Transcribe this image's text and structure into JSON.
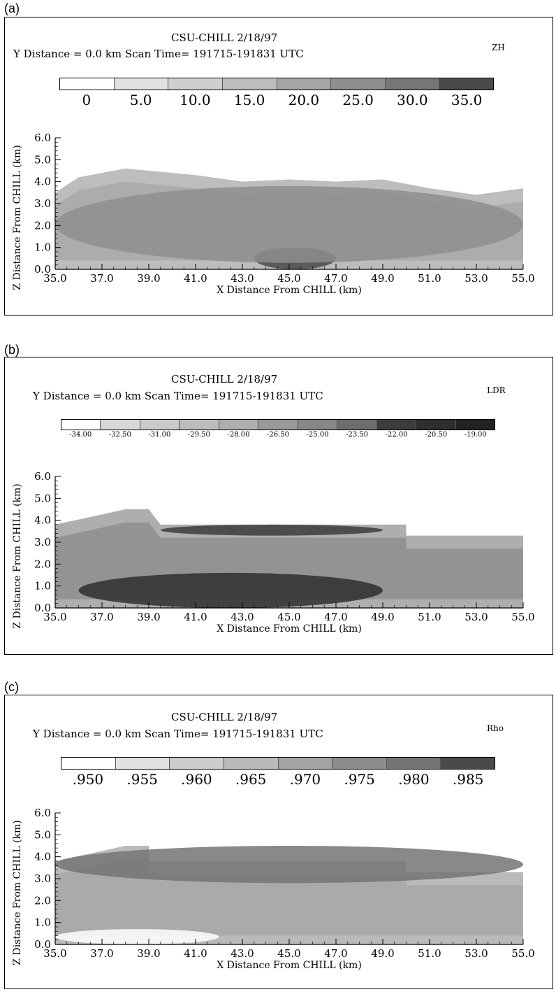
{
  "panels": [
    {
      "label": "(a)",
      "title_line1": "CSU-CHILL    2/18/97",
      "title_line2": "Y Distance =    0.0 km   Scan Time= 191715-191831 UTC",
      "variable": "ZH",
      "colorbar": {
        "labels": [
          "0",
          "5.0",
          "10.0",
          "15.0",
          "20.0",
          "25.0",
          "30.0",
          "35.0"
        ],
        "colors": [
          "#ffffff",
          "#e2e2e2",
          "#cfcfcf",
          "#bdbdbd",
          "#a5a5a5",
          "#8e8e8e",
          "#767676",
          "#4a4a4a"
        ]
      }
    },
    {
      "label": "(b)",
      "title_line1": "CSU-CHILL    2/18/97",
      "title_line2": "Y Distance =    0.0 km   Scan Time= 191715-191831 UTC",
      "variable": "LDR",
      "colorbar": {
        "labels": [
          "-34.00",
          "-32.50",
          "-31.00",
          "-29.50",
          "-28.00",
          "-26.50",
          "-25.00",
          "-23.50",
          "-22.00",
          "-20.50",
          "-19.00"
        ],
        "colors": [
          "#ffffff",
          "#d8d8d8",
          "#cacaca",
          "#bcbcbc",
          "#aeaeae",
          "#9a9a9a",
          "#878787",
          "#6d6d6d",
          "#3c3c3c",
          "#2e2e2e",
          "#222222"
        ]
      }
    },
    {
      "label": "(c)",
      "title_line1": "CSU-CHILL    2/18/97",
      "title_line2": "Y Distance =    0.0 km   Scan Time= 191715-191831 UTC",
      "variable": "Rho",
      "colorbar": {
        "labels": [
          ".950",
          ".955",
          ".960",
          ".965",
          ".970",
          ".975",
          ".980",
          ".985"
        ],
        "colors": [
          "#ffffff",
          "#e2e2e2",
          "#cdcdcd",
          "#bababa",
          "#a4a4a4",
          "#8d8d8d",
          "#747474",
          "#4a4a4a"
        ]
      }
    }
  ],
  "chart_data": [
    {
      "type": "heatmap",
      "title": "CSU-CHILL 2/18/97",
      "variable": "ZH",
      "xlabel": "X Distance From CHILL (km)",
      "ylabel": "Z Distance From CHILL (km)",
      "xlim": [
        35.0,
        55.0
      ],
      "ylim": [
        0.0,
        6.0
      ],
      "x_ticks": [
        "35.0",
        "37.0",
        "39.0",
        "41.0",
        "43.0",
        "45.0",
        "47.0",
        "49.0",
        "51.0",
        "53.0",
        "55.0"
      ],
      "y_ticks": [
        "0.0",
        "1.0",
        "2.0",
        "3.0",
        "4.0",
        "5.0",
        "6.0"
      ],
      "echo_top_km": [
        [
          35.0,
          3.5
        ],
        [
          36.0,
          4.2
        ],
        [
          37.0,
          4.4
        ],
        [
          38.0,
          4.6
        ],
        [
          39.0,
          4.5
        ],
        [
          41.0,
          4.3
        ],
        [
          43.0,
          4.0
        ],
        [
          45.0,
          4.1
        ],
        [
          47.0,
          4.0
        ],
        [
          49.0,
          4.1
        ],
        [
          51.0,
          3.7
        ],
        [
          53.0,
          3.4
        ],
        [
          55.0,
          3.7
        ]
      ],
      "features": [
        {
          "name": "bright band core",
          "x": [
            43.5,
            47.0
          ],
          "z": [
            0.0,
            1.0
          ],
          "value": 35.0
        },
        {
          "name": "main echo",
          "x": [
            35.0,
            55.0
          ],
          "z": [
            0.3,
            3.8
          ],
          "value": 25.0
        }
      ]
    },
    {
      "type": "heatmap",
      "title": "CSU-CHILL 2/18/97",
      "variable": "LDR",
      "xlabel": "X Distance From CHILL (km)",
      "ylabel": "Z Distance From CHILL (km)",
      "xlim": [
        35.0,
        55.0
      ],
      "ylim": [
        0.0,
        6.0
      ],
      "x_ticks": [
        "35.0",
        "37.0",
        "39.0",
        "41.0",
        "43.0",
        "45.0",
        "47.0",
        "49.0",
        "51.0",
        "53.0",
        "55.0"
      ],
      "y_ticks": [
        "0.0",
        "1.0",
        "2.0",
        "3.0",
        "4.0",
        "5.0",
        "6.0"
      ],
      "echo_top_km": [
        [
          35.0,
          3.8
        ],
        [
          38.0,
          4.5
        ],
        [
          39.0,
          4.5
        ],
        [
          39.5,
          3.8
        ],
        [
          50.0,
          3.8
        ],
        [
          50.0,
          3.3
        ],
        [
          55.0,
          3.3
        ]
      ],
      "features": [
        {
          "name": "low-level high LDR band",
          "x": [
            36.0,
            49.0
          ],
          "z": [
            0.0,
            1.6
          ],
          "value": -21.0
        },
        {
          "name": "upper-level high LDR",
          "x": [
            39.5,
            49.0
          ],
          "z": [
            3.3,
            3.8
          ],
          "value": -22.0
        }
      ]
    },
    {
      "type": "heatmap",
      "title": "CSU-CHILL 2/18/97",
      "variable": "Rho",
      "xlabel": "X Distance From CHILL (km)",
      "ylabel": "Z Distance From CHILL (km)",
      "xlim": [
        35.0,
        55.0
      ],
      "ylim": [
        0.0,
        6.0
      ],
      "x_ticks": [
        "35.0",
        "37.0",
        "39.0",
        "41.0",
        "43.0",
        "45.0",
        "47.0",
        "49.0",
        "51.0",
        "53.0",
        "55.0"
      ],
      "y_ticks": [
        "0.0",
        "1.0",
        "2.0",
        "3.0",
        "4.0",
        "5.0",
        "6.0"
      ],
      "echo_top_km": [
        [
          35.0,
          3.8
        ],
        [
          38.0,
          4.5
        ],
        [
          39.0,
          4.5
        ],
        [
          39.0,
          3.8
        ],
        [
          50.0,
          3.8
        ],
        [
          50.0,
          3.3
        ],
        [
          55.0,
          3.3
        ]
      ],
      "features": [
        {
          "name": "low-level low rho",
          "x": [
            35.0,
            42.0
          ],
          "z": [
            0.0,
            0.7
          ],
          "value": 0.95
        },
        {
          "name": "upper-level high rho",
          "x": [
            35.0,
            55.0
          ],
          "z": [
            2.8,
            4.5
          ],
          "value": 0.98
        }
      ]
    }
  ]
}
